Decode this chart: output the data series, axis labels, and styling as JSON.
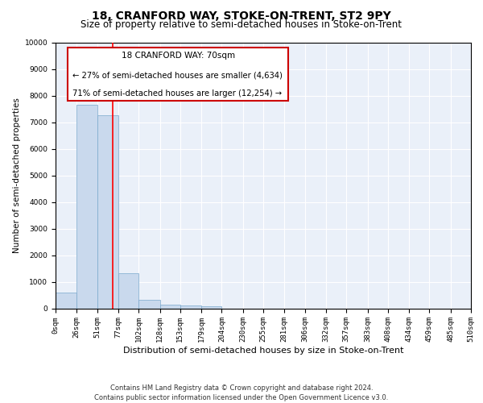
{
  "title": "18, CRANFORD WAY, STOKE-ON-TRENT, ST2 9PY",
  "subtitle": "Size of property relative to semi-detached houses in Stoke-on-Trent",
  "xlabel": "Distribution of semi-detached houses by size in Stoke-on-Trent",
  "ylabel": "Number of semi-detached properties",
  "footer_line1": "Contains HM Land Registry data © Crown copyright and database right 2024.",
  "footer_line2": "Contains public sector information licensed under the Open Government Licence v3.0.",
  "annotation_title": "18 CRANFORD WAY: 70sqm",
  "annotation_line1": "← 27% of semi-detached houses are smaller (4,634)",
  "annotation_line2": "71% of semi-detached houses are larger (12,254) →",
  "property_size_sqm": 70,
  "bar_color": "#c9d9ed",
  "bar_edge_color": "#7aa8cc",
  "bar_heights": [
    580,
    7650,
    7250,
    1330,
    330,
    145,
    100,
    75,
    0,
    0,
    0,
    0,
    0,
    0,
    0,
    0,
    0,
    0,
    0,
    0
  ],
  "bin_edges": [
    0,
    26,
    51,
    77,
    102,
    128,
    153,
    179,
    204,
    230,
    255,
    281,
    306,
    332,
    357,
    383,
    408,
    434,
    459,
    485,
    510
  ],
  "tick_labels": [
    "0sqm",
    "26sqm",
    "51sqm",
    "77sqm",
    "102sqm",
    "128sqm",
    "153sqm",
    "179sqm",
    "204sqm",
    "230sqm",
    "255sqm",
    "281sqm",
    "306sqm",
    "332sqm",
    "357sqm",
    "383sqm",
    "408sqm",
    "434sqm",
    "459sqm",
    "485sqm",
    "510sqm"
  ],
  "ylim": [
    0,
    10000
  ],
  "yticks": [
    0,
    1000,
    2000,
    3000,
    4000,
    5000,
    6000,
    7000,
    8000,
    9000,
    10000
  ],
  "bg_color": "#eaf0f9",
  "red_line_x": 70,
  "annotation_box_color": "#ffffff",
  "annotation_box_edge": "#cc0000",
  "title_fontsize": 10,
  "subtitle_fontsize": 8.5,
  "axis_label_fontsize": 7.5,
  "tick_fontsize": 6.5,
  "annotation_fontsize": 7.2,
  "footer_fontsize": 6.0
}
